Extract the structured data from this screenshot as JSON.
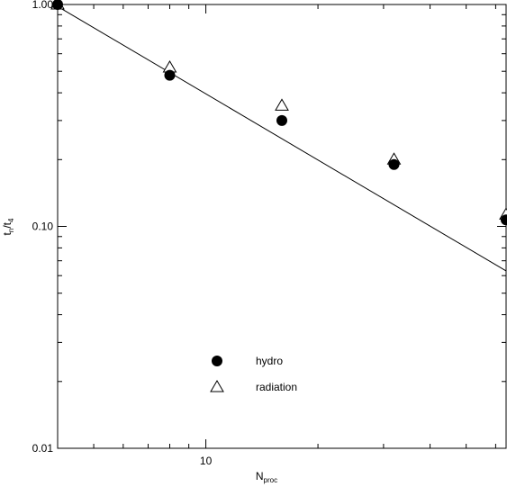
{
  "chart_data": {
    "type": "scatter",
    "title": "",
    "xlabel": {
      "main": "N",
      "sub": "proc"
    },
    "ylabel": {
      "t": "t",
      "n": "n",
      "slash": "/t",
      "four": "4"
    },
    "xscale": "log",
    "yscale": "log",
    "xlim": [
      4,
      64
    ],
    "ylim": [
      0.01,
      1.0
    ],
    "grid": false,
    "legend_position": "lower-center",
    "x_tick_labels": [
      {
        "value": 10,
        "label": "10"
      }
    ],
    "y_tick_labels": [
      {
        "value": 1.0,
        "label": "1.00"
      },
      {
        "value": 0.1,
        "label": "0.10"
      },
      {
        "value": 0.01,
        "label": "0.01"
      }
    ],
    "series": [
      {
        "name": "hydro",
        "marker": "filled-circle",
        "x": [
          4,
          8,
          16,
          32,
          64
        ],
        "y": [
          1.0,
          0.48,
          0.3,
          0.19,
          0.107
        ]
      },
      {
        "name": "radiation",
        "marker": "open-triangle",
        "x": [
          4,
          8,
          16,
          32,
          64
        ],
        "y": [
          1.0,
          0.52,
          0.35,
          0.2,
          0.113
        ]
      }
    ],
    "reference_line": {
      "x": [
        4,
        64
      ],
      "y": [
        0.98,
        0.063
      ]
    }
  }
}
